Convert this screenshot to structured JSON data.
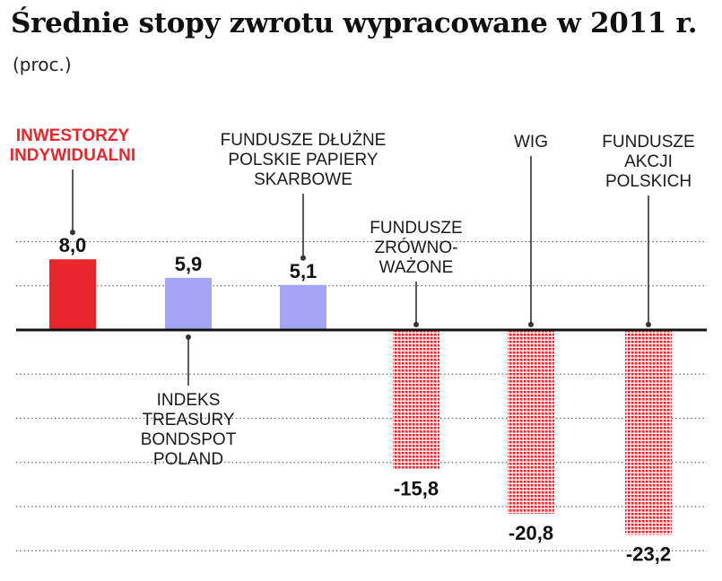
{
  "chart_data": {
    "type": "bar",
    "title": "Średnie stopy zwrotu wypracowane w 2011 r.",
    "subtitle": "(proc.)",
    "xlabel": "",
    "ylabel": "",
    "ylim": [
      -25,
      10
    ],
    "grid": true,
    "grid_style": "dotted",
    "categories": [
      {
        "label": "INWESTORZY\nINDYWIDUALNI",
        "value": 8.0,
        "value_label": "8,0",
        "style": "solid",
        "color": "#e8262b",
        "label_color": "#e8262b",
        "label_pos": "top"
      },
      {
        "label": "INDEKS\nTREASURY\nBONDSPOT\nPOLAND",
        "value": 5.9,
        "value_label": "5,9",
        "style": "solid",
        "color": "#a4a4f4",
        "label_color": "#1a1a1a",
        "label_pos": "bottom"
      },
      {
        "label": "FUNDUSZE DŁUŻNE\nPOLSKIE PAPIERY\nSKARBOWE",
        "value": 5.1,
        "value_label": "5,1",
        "style": "solid",
        "color": "#a4a4f4",
        "label_color": "#1a1a1a",
        "label_pos": "top"
      },
      {
        "label": "FUNDUSZE\nZRÓWNO-\nWAŻONE",
        "value": -15.8,
        "value_label": "-15,8",
        "style": "dotted",
        "color": "#e8262b",
        "label_color": "#1a1a1a",
        "label_pos": "top"
      },
      {
        "label": "WIG",
        "value": -20.8,
        "value_label": "-20,8",
        "style": "dotted",
        "color": "#e8262b",
        "label_color": "#1a1a1a",
        "label_pos": "top"
      },
      {
        "label": "FUNDUSZE\nAKCJI\nPOLSKICH",
        "value": -23.2,
        "value_label": "-23,2",
        "style": "dotted",
        "color": "#e8262b",
        "label_color": "#1a1a1a",
        "label_pos": "top"
      }
    ]
  }
}
